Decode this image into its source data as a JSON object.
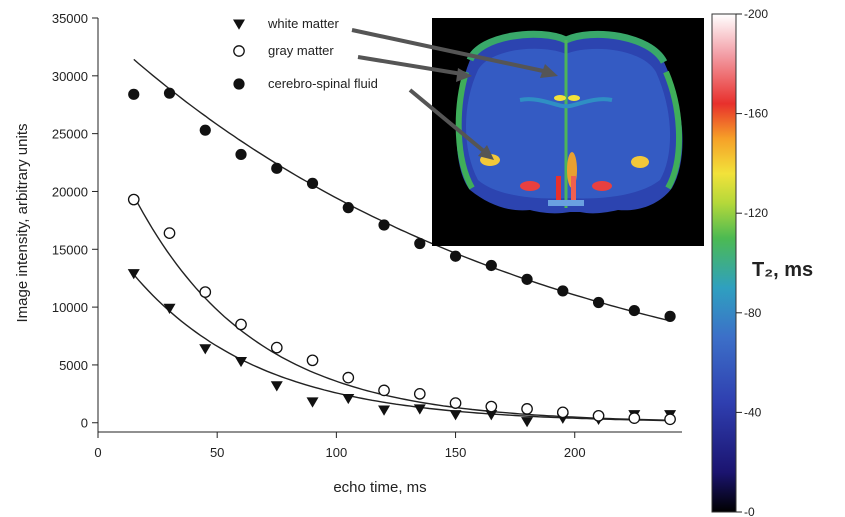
{
  "chart_data": {
    "type": "scatter",
    "xlabel": "echo time, ms",
    "ylabel": "Image intensity, arbitrary units",
    "xlim": [
      0,
      245
    ],
    "ylim": [
      -800,
      35000
    ],
    "x_ticks": [
      "0",
      "50",
      "100",
      "150",
      "200"
    ],
    "y_ticks": [
      "0",
      "5000",
      "10000",
      "15000",
      "20000",
      "25000",
      "30000",
      "35000"
    ],
    "x": [
      15,
      30,
      45,
      60,
      75,
      90,
      105,
      120,
      135,
      150,
      165,
      180,
      195,
      210,
      225,
      240
    ],
    "series": [
      {
        "name": "white matter",
        "marker": "filled-triangle-down",
        "values": [
          12900,
          9900,
          6400,
          5300,
          3200,
          1800,
          2100,
          1100,
          1200,
          700,
          700,
          100,
          400,
          300,
          700,
          700
        ],
        "fit": {
          "A": 17000,
          "tau": 53,
          "x_start": 15
        }
      },
      {
        "name": "gray matter",
        "marker": "open-circle",
        "values": [
          19300,
          16400,
          11300,
          8500,
          6500,
          5400,
          3900,
          2800,
          2500,
          1700,
          1400,
          1200,
          900,
          600,
          400,
          300
        ],
        "fit": {
          "A": 26500,
          "tau": 50,
          "x_start": 15
        }
      },
      {
        "name": "cerebro-spinal fluid",
        "marker": "filled-circle",
        "values": [
          28400,
          28500,
          25300,
          23200,
          22000,
          20700,
          18600,
          17100,
          15500,
          14400,
          13600,
          12400,
          11400,
          10400,
          9700,
          9200
        ],
        "fit": {
          "A": 34200,
          "tau": 177,
          "x_start": 15
        }
      }
    ],
    "colorbar": {
      "title": "T₂, ms",
      "ticks": [
        "-200",
        "-160",
        "-120",
        "-80",
        "-40",
        "-0"
      ],
      "range": [
        0,
        200
      ]
    },
    "inset": {
      "description_label": "brain-t2-map"
    }
  }
}
